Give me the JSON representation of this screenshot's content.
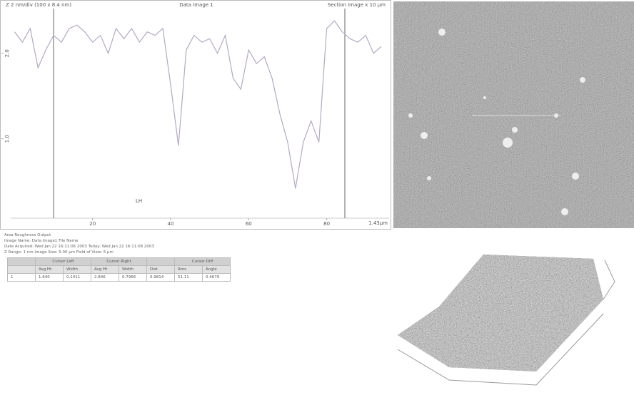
{
  "chart_data": {
    "type": "line",
    "title": "Data Image 1",
    "header_left": "Z 2 nm/div (100 x 8.4 nm)",
    "header_right": "Section Image x 10 µm",
    "cursor_label": "LH",
    "x_unit_label": "1.43µm",
    "color": "#b4a8c4",
    "xlim": [
      -1,
      96
    ],
    "xticks": [
      20,
      40,
      60,
      80
    ],
    "ylim": [
      0.08,
      2.54
    ],
    "yticks": [
      {
        "value": 2,
        "label": "2.0"
      },
      {
        "value": 1,
        "label": "1.0"
      }
    ],
    "x": [
      0,
      2,
      4,
      6,
      8,
      10,
      12,
      14,
      16,
      18,
      20,
      22,
      24,
      26,
      28,
      30,
      32,
      34,
      36,
      38,
      40,
      42,
      44,
      46,
      48,
      50,
      52,
      54,
      56,
      58,
      60,
      62,
      64,
      66,
      68,
      70,
      72,
      74,
      76,
      78,
      80,
      82,
      84,
      86,
      88,
      90,
      92,
      94
    ],
    "values": [
      2.25,
      2.13,
      2.29,
      1.83,
      2.04,
      2.21,
      2.13,
      2.29,
      2.33,
      2.25,
      2.13,
      2.21,
      2.0,
      2.29,
      2.17,
      2.29,
      2.13,
      2.25,
      2.21,
      2.29,
      1.63,
      0.92,
      2.04,
      2.21,
      2.13,
      2.17,
      2.0,
      2.21,
      1.71,
      1.58,
      2.04,
      1.88,
      1.96,
      1.71,
      1.29,
      0.96,
      0.42,
      0.96,
      1.21,
      0.96,
      2.29,
      2.38,
      2.25,
      2.17,
      2.13,
      2.21,
      2.0,
      2.08
    ]
  },
  "roughness": {
    "title": "Area Roughness Output",
    "lines": [
      "Image Name: Data Image1   File Name",
      "Date Acquired: Wed Jan 22 16:11:06 2003   Today: Wed Jan 22 16:11:08 2003",
      "Z Range: 1 nm   Image Size: 5.00 µm   Field of View: 5 µm"
    ],
    "group_headers": [
      "Cursor Left",
      "Cursor Right",
      "Cursor Diff"
    ],
    "sub_headers": [
      "Avg Ht",
      "Width",
      "Avg Ht",
      "Width",
      "Dist",
      "Rms",
      "Angle"
    ],
    "rows": [
      [
        "1",
        "1.640",
        "0.1411",
        "2.846",
        "0.7966",
        "0.9814",
        "51.11",
        "0.4679"
      ]
    ]
  }
}
